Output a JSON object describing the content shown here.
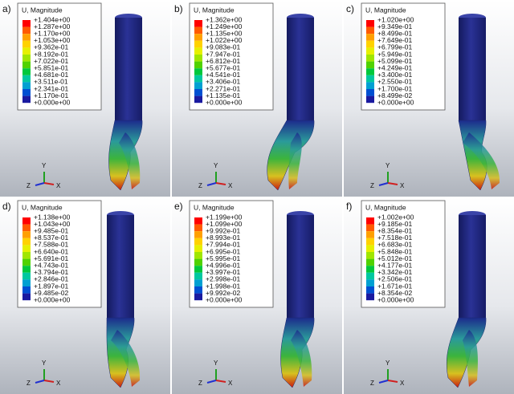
{
  "legend_title": "U, Magnitude",
  "triad": {
    "y": "Y",
    "z": "Z",
    "x": "X"
  },
  "panels": [
    {
      "label": "a)",
      "legend": [
        "+1.404e+00",
        "+1.287e+00",
        "+1.170e+00",
        "+1.053e+00",
        "+9.362e-01",
        "+8.192e-01",
        "+7.022e-01",
        "+5.851e-01",
        "+4.681e-01",
        "+3.511e-01",
        "+2.341e-01",
        "+1.170e-01",
        "+0.000e+00"
      ]
    },
    {
      "label": "b)",
      "legend": [
        "+1.362e+00",
        "+1.249e+00",
        "+1.135e+00",
        "+1.022e+00",
        "+9.083e-01",
        "+7.947e-01",
        "+6.812e-01",
        "+5.677e-01",
        "+4.541e-01",
        "+3.406e-01",
        "+2.271e-01",
        "+1.135e-01",
        "+0.000e+00"
      ]
    },
    {
      "label": "c)",
      "legend": [
        "+1.020e+00",
        "+9.349e-01",
        "+8.499e-01",
        "+7.649e-01",
        "+6.799e-01",
        "+5.949e-01",
        "+5.099e-01",
        "+4.249e-01",
        "+3.400e-01",
        "+2.550e-01",
        "+1.700e-01",
        "+8.499e-02",
        "+0.000e+00"
      ]
    },
    {
      "label": "d)",
      "legend": [
        "+1.138e+00",
        "+1.043e+00",
        "+9.485e-01",
        "+8.537e-01",
        "+7.588e-01",
        "+6.640e-01",
        "+5.691e-01",
        "+4.743e-01",
        "+3.794e-01",
        "+2.846e-01",
        "+1.897e-01",
        "+9.485e-02",
        "+0.000e+00"
      ]
    },
    {
      "label": "e)",
      "legend": [
        "+1.199e+00",
        "+1.099e+00",
        "+9.992e-01",
        "+8.993e-01",
        "+7.994e-01",
        "+6.995e-01",
        "+5.995e-01",
        "+4.996e-01",
        "+3.997e-01",
        "+2.998e-01",
        "+1.998e-01",
        "+9.992e-02",
        "+0.000e+00"
      ]
    },
    {
      "label": "f)",
      "legend": [
        "+1.002e+00",
        "+9.185e-01",
        "+8.354e-01",
        "+7.518e-01",
        "+6.683e-01",
        "+5.848e-01",
        "+5.012e-01",
        "+4.177e-01",
        "+3.342e-01",
        "+2.506e-01",
        "+1.671e-01",
        "+8.354e-02",
        "+0.000e+00"
      ]
    }
  ]
}
